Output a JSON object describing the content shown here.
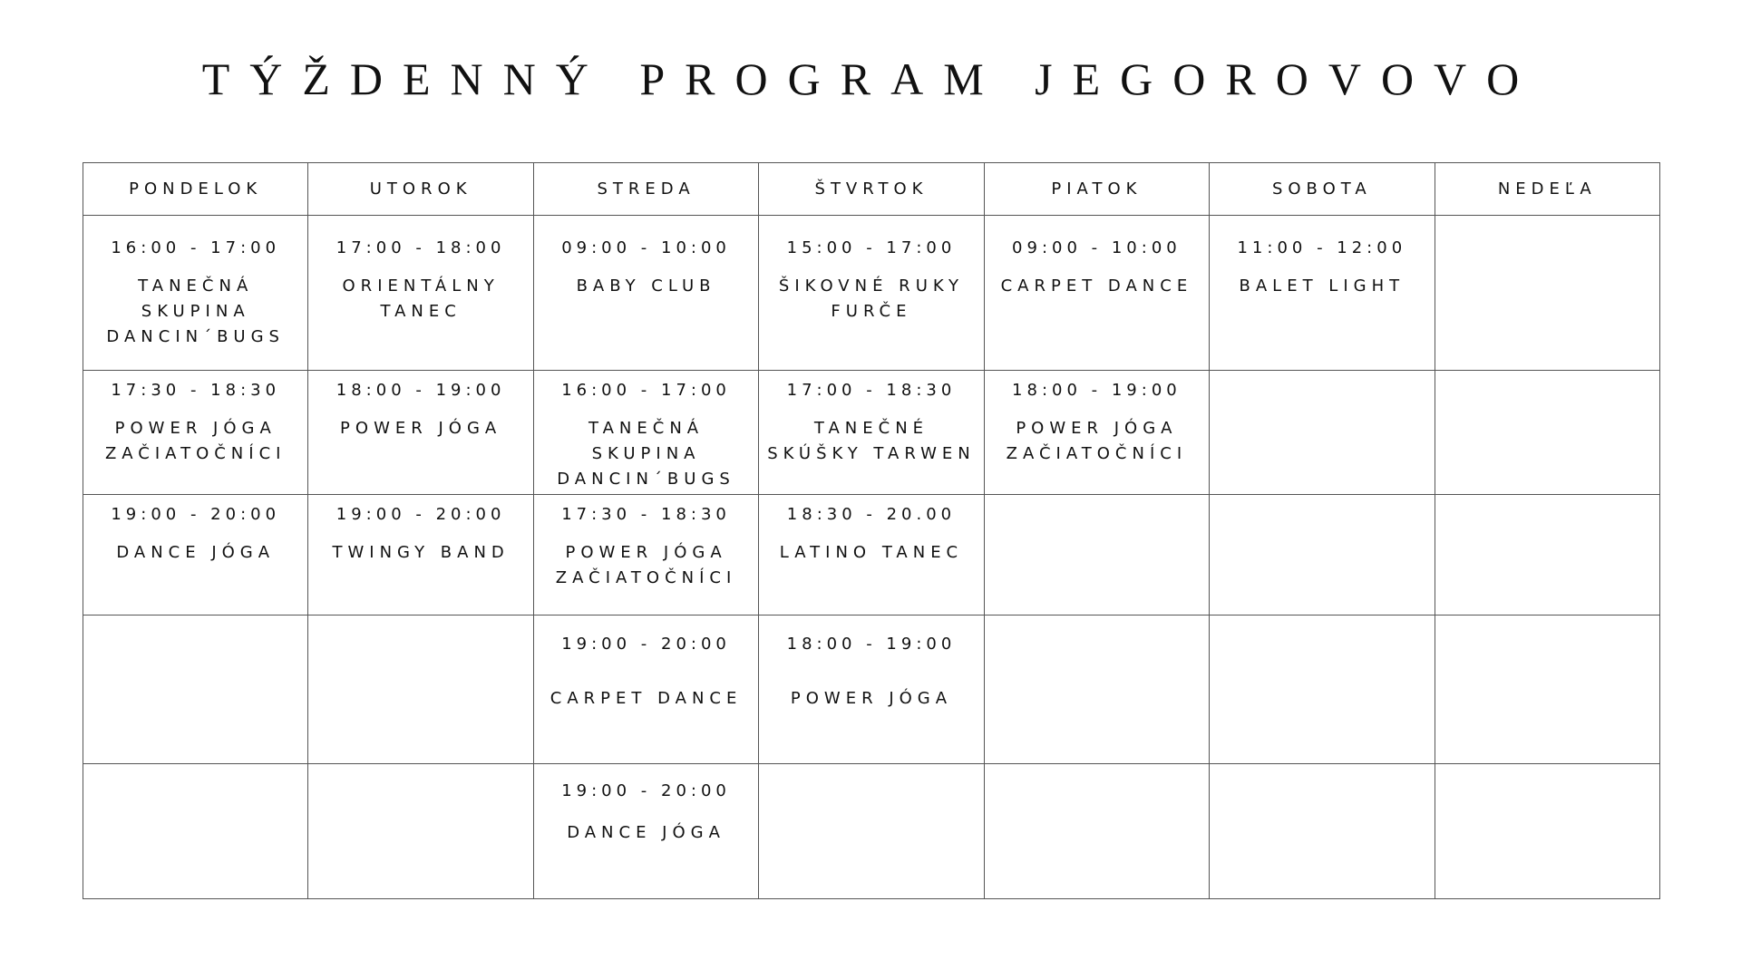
{
  "title": "TÝŽDENNÝ PROGRAM JEGOROVOVO",
  "days": [
    "PONDELOK",
    "UTOROK",
    "STREDA",
    "ŠTVRTOK",
    "PIATOK",
    "SOBOTA",
    "NEDEĽA"
  ],
  "rows": [
    [
      {
        "time": "16:00 - 17:00",
        "name": "TANEČNÁ SKUPINA DANCIN´BUGS"
      },
      {
        "time": "17:00 - 18:00",
        "name": "ORIENTÁLNY TANEC"
      },
      {
        "time": "09:00 - 10:00",
        "name": "BABY CLUB"
      },
      {
        "time": "15:00 - 17:00",
        "name": "ŠIKOVNÉ RUKY FURČE"
      },
      {
        "time": "09:00 - 10:00",
        "name": "CARPET DANCE"
      },
      {
        "time": "11:00 - 12:00",
        "name": "BALET LIGHT"
      },
      {
        "time": "",
        "name": ""
      }
    ],
    [
      {
        "time": "17:30 - 18:30",
        "name": "POWER JÓGA ZAČIATOČNÍCI"
      },
      {
        "time": "18:00 - 19:00",
        "name": "POWER JÓGA"
      },
      {
        "time": "16:00 - 17:00",
        "name": "TANEČNÁ SKUPINA DANCIN´BUGS"
      },
      {
        "time": "17:00 - 18:30",
        "name": "TANEČNÉ SKÚŠKY TARWEN"
      },
      {
        "time": "18:00 - 19:00",
        "name": "POWER JÓGA ZAČIATOČNÍCI"
      },
      {
        "time": "",
        "name": ""
      },
      {
        "time": "",
        "name": ""
      }
    ],
    [
      {
        "time": "19:00 - 20:00",
        "name": "DANCE JÓGA"
      },
      {
        "time": "19:00 - 20:00",
        "name": "TWINGY BAND"
      },
      {
        "time": "17:30 - 18:30",
        "name": "POWER JÓGA ZAČIATOČNÍCI"
      },
      {
        "time": "18:30 - 20.00",
        "name": "LATINO TANEC"
      },
      {
        "time": "",
        "name": ""
      },
      {
        "time": "",
        "name": ""
      },
      {
        "time": "",
        "name": ""
      }
    ],
    [
      {
        "time": "",
        "name": ""
      },
      {
        "time": "",
        "name": ""
      },
      {
        "time": "19:00 - 20:00",
        "name": "CARPET DANCE"
      },
      {
        "time": "18:00 - 19:00",
        "name": "POWER JÓGA"
      },
      {
        "time": "",
        "name": ""
      },
      {
        "time": "",
        "name": ""
      },
      {
        "time": "",
        "name": ""
      }
    ],
    [
      {
        "time": "",
        "name": ""
      },
      {
        "time": "",
        "name": ""
      },
      {
        "time": "19:00 - 20:00",
        "name": "DANCE JÓGA"
      },
      {
        "time": "",
        "name": ""
      },
      {
        "time": "",
        "name": ""
      },
      {
        "time": "",
        "name": ""
      },
      {
        "time": "",
        "name": ""
      }
    ]
  ]
}
